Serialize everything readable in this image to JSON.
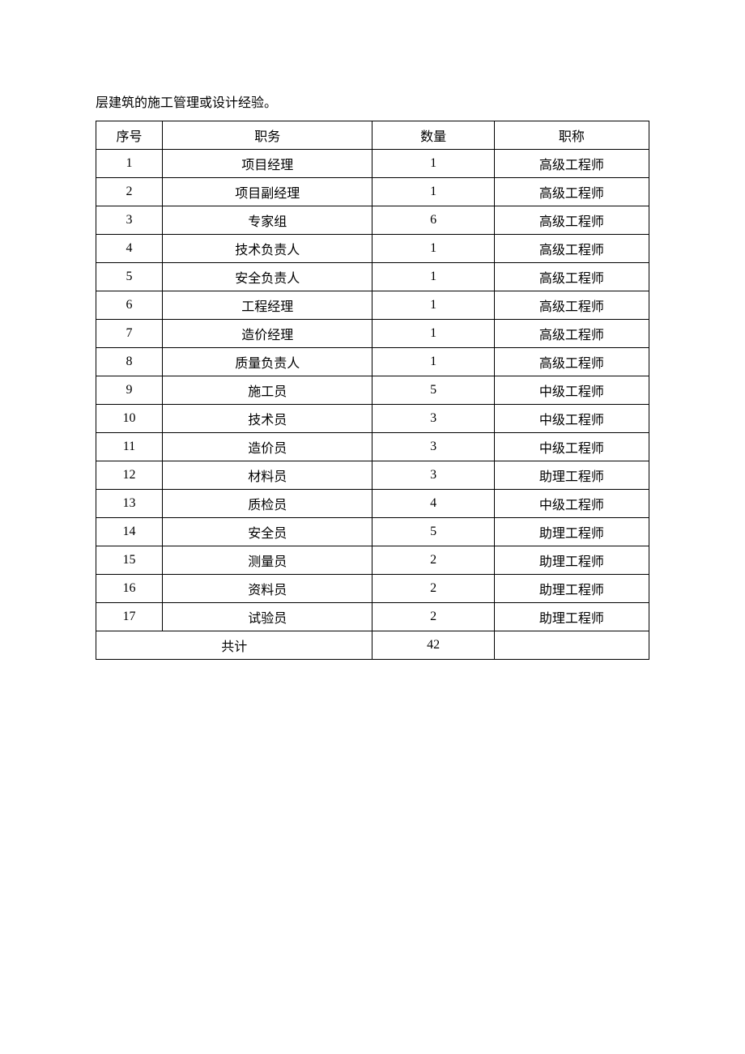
{
  "intro_text": "层建筑的施工管理或设计经验。",
  "table": {
    "columns": [
      "序号",
      "职务",
      "数量",
      "职称"
    ],
    "rows": [
      {
        "seq": "1",
        "position": "项目经理",
        "qty": "1",
        "title": "高级工程师"
      },
      {
        "seq": "2",
        "position": "项目副经理",
        "qty": "1",
        "title": "高级工程师"
      },
      {
        "seq": "3",
        "position": "专家组",
        "qty": "6",
        "title": "高级工程师"
      },
      {
        "seq": "4",
        "position": "技术负责人",
        "qty": "1",
        "title": "高级工程师"
      },
      {
        "seq": "5",
        "position": "安全负责人",
        "qty": "1",
        "title": "高级工程师"
      },
      {
        "seq": "6",
        "position": "工程经理",
        "qty": "1",
        "title": "高级工程师"
      },
      {
        "seq": "7",
        "position": "造价经理",
        "qty": "1",
        "title": "高级工程师"
      },
      {
        "seq": "8",
        "position": "质量负责人",
        "qty": "1",
        "title": "高级工程师"
      },
      {
        "seq": "9",
        "position": "施工员",
        "qty": "5",
        "title": "中级工程师"
      },
      {
        "seq": "10",
        "position": "技术员",
        "qty": "3",
        "title": "中级工程师"
      },
      {
        "seq": "11",
        "position": "造价员",
        "qty": "3",
        "title": "中级工程师"
      },
      {
        "seq": "12",
        "position": "材料员",
        "qty": "3",
        "title": "助理工程师"
      },
      {
        "seq": "13",
        "position": "质检员",
        "qty": "4",
        "title": "中级工程师"
      },
      {
        "seq": "14",
        "position": "安全员",
        "qty": "5",
        "title": "助理工程师"
      },
      {
        "seq": "15",
        "position": "测量员",
        "qty": "2",
        "title": "助理工程师"
      },
      {
        "seq": "16",
        "position": "资料员",
        "qty": "2",
        "title": "助理工程师"
      },
      {
        "seq": "17",
        "position": "试验员",
        "qty": "2",
        "title": "助理工程师"
      }
    ],
    "total_label": "共计",
    "total_qty": "42"
  },
  "colors": {
    "background": "#ffffff",
    "text": "#000000",
    "border": "#000000"
  }
}
